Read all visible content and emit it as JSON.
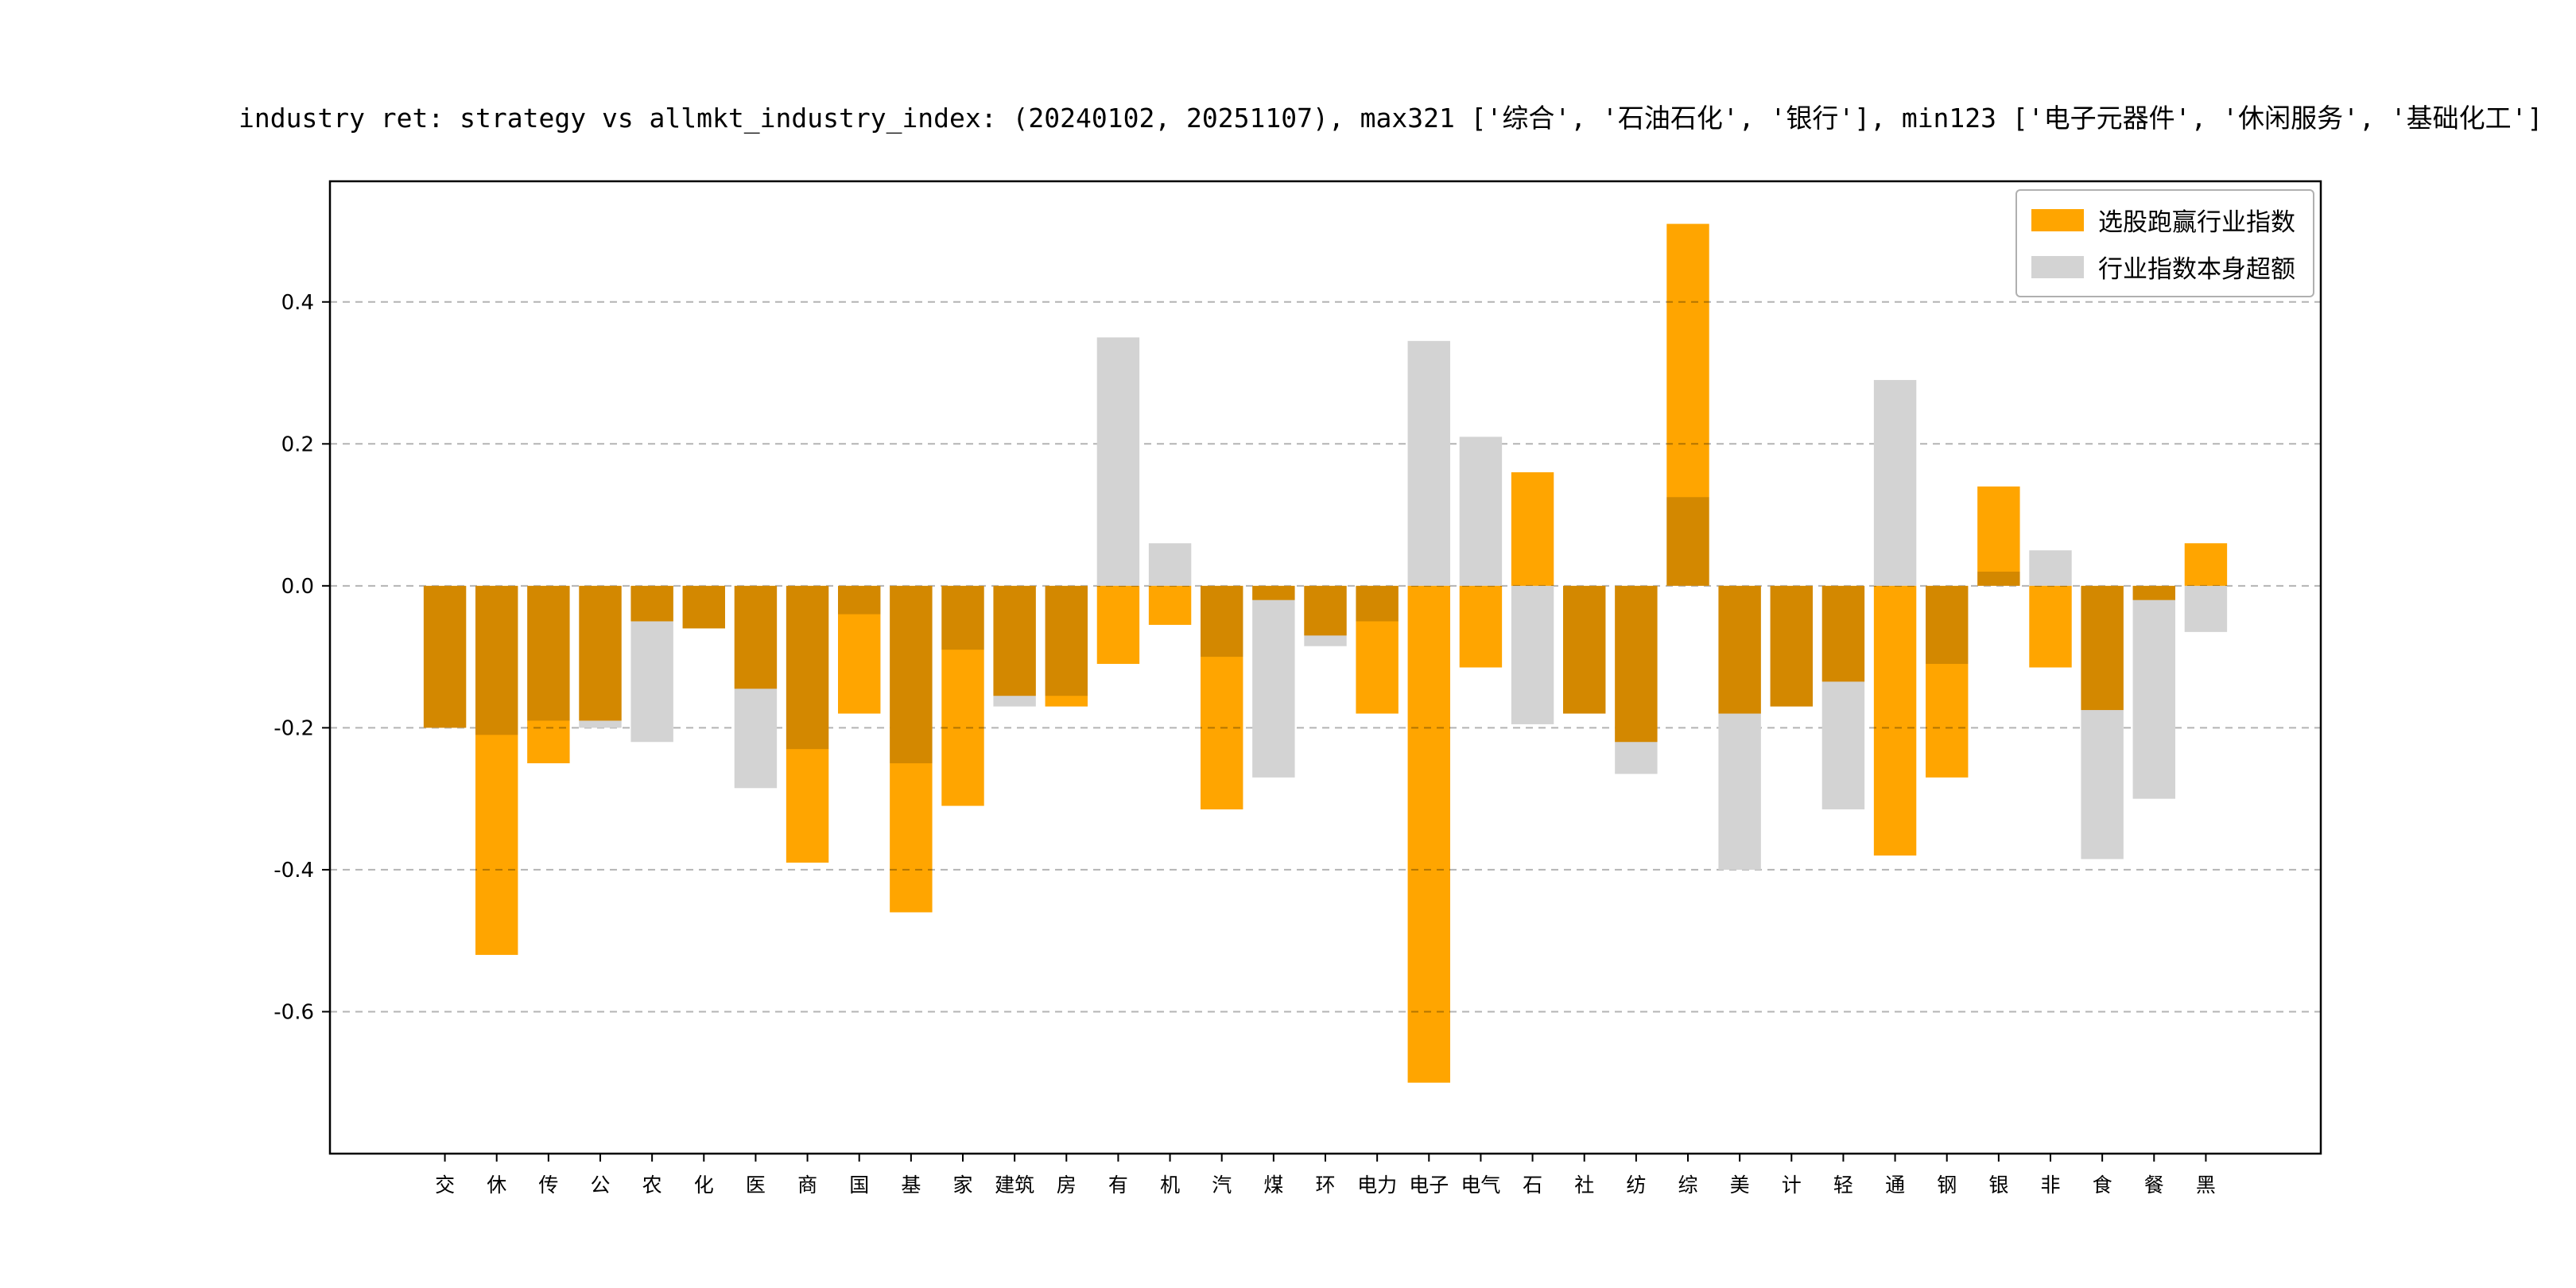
{
  "title": "industry ret: strategy vs allmkt_industry_index: (20240102, 20251107), max321 ['综合', '石油石化', '银行'], min123 ['电子元器件', '休闲服务', '基础化工']",
  "legend": {
    "series1_label": "选股跑赢行业指数",
    "series2_label": "行业指数本身超额"
  },
  "colors": {
    "orange": "#FFA500",
    "gray": "#D3D3D3",
    "grid": "#b4b4b4",
    "spine": "#000000"
  },
  "chart_data": {
    "type": "bar",
    "title": "industry ret: strategy vs allmkt_industry_index: (20240102, 20251107), max321 ['综合', '石油石化', '银行'], min123 ['电子元器件', '休闲服务', '基础化工']",
    "categories": [
      "交",
      "休",
      "传",
      "公",
      "农",
      "化",
      "医",
      "商",
      "国",
      "基",
      "家",
      "建筑",
      "房",
      "有",
      "机",
      "汽",
      "煤",
      "环",
      "电力",
      "电子",
      "电气",
      "石",
      "社",
      "纺",
      "综",
      "美",
      "计",
      "轻",
      "通",
      "钢",
      "银",
      "非",
      "食",
      "餐",
      "黑"
    ],
    "series": [
      {
        "name": "选股跑赢行业指数",
        "color": "#FFA500",
        "values": [
          -0.2,
          -0.52,
          -0.25,
          -0.19,
          -0.05,
          -0.06,
          -0.145,
          -0.39,
          -0.18,
          -0.46,
          -0.31,
          -0.155,
          -0.17,
          -0.11,
          -0.055,
          -0.315,
          -0.02,
          -0.07,
          -0.18,
          -0.7,
          -0.115,
          0.16,
          -0.18,
          -0.22,
          0.51,
          -0.18,
          -0.17,
          -0.135,
          -0.38,
          -0.27,
          0.14,
          -0.115,
          -0.175,
          -0.02,
          0.06
        ]
      },
      {
        "name": "行业指数本身超额",
        "color": "#D3D3D3",
        "values": [
          -0.2,
          -0.21,
          -0.19,
          -0.2,
          -0.22,
          -0.06,
          -0.285,
          -0.23,
          -0.04,
          -0.25,
          -0.09,
          -0.17,
          -0.155,
          0.35,
          0.06,
          -0.1,
          -0.27,
          -0.085,
          -0.05,
          0.345,
          0.21,
          -0.195,
          -0.18,
          -0.265,
          0.125,
          -0.4,
          -0.17,
          -0.315,
          0.29,
          -0.11,
          0.02,
          0.05,
          -0.385,
          -0.3,
          -0.065
        ]
      }
    ],
    "xlabel": "",
    "ylabel": "",
    "ylim": [
      -0.8,
      0.57
    ],
    "yticks": [
      -0.6,
      -0.4,
      -0.2,
      0.0,
      0.2,
      0.4
    ],
    "ytick_labels": [
      "-0.6",
      "-0.4",
      "-0.2",
      "0.0",
      "0.2",
      "0.4"
    ],
    "grid": "horizontal-dashed",
    "legend_position": "upper right"
  }
}
